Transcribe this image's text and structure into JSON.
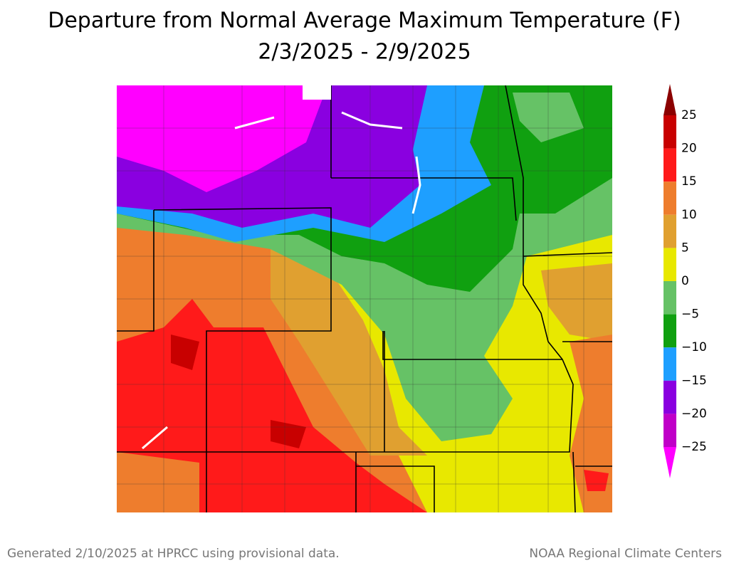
{
  "title": "Departure from Normal Average Maximum Temperature (F)",
  "subtitle": "2/3/2025 - 2/9/2025",
  "legend": {
    "labels": [
      "25",
      "20",
      "15",
      "10",
      "5",
      "0",
      "−5",
      "−10",
      "−15",
      "−20",
      "−25"
    ],
    "colors": [
      "#8b0000",
      "#c80000",
      "#ff1a1a",
      "#ee7d2d",
      "#e0a030",
      "#e8e800",
      "#66c266",
      "#10a010",
      "#1e9fff",
      "#8a00e0",
      "#c000c8",
      "#ff00ff"
    ]
  },
  "footer": {
    "left": "Generated 2/10/2025 at HPRCC using provisional data.",
    "right": "NOAA Regional Climate Centers"
  }
}
